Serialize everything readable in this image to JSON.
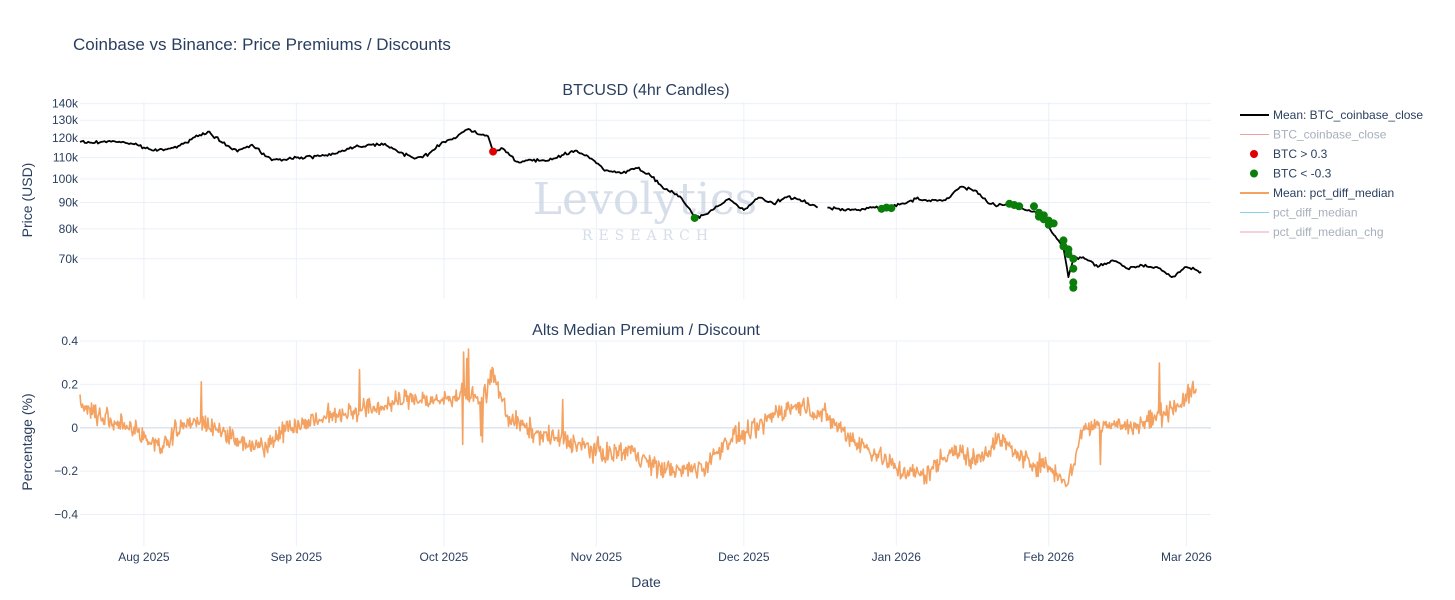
{
  "colors": {
    "btc_mean": "#000000",
    "btc_close": "#e8a0a0",
    "btc_premium": "#e00000",
    "btc_discount": "#0a7d0a",
    "alts_mean": "#f4a261",
    "pct_diff": "#7fd4e8",
    "pct_chg": "#e8a0b8",
    "grid": "#ebf0f8",
    "text": "#2a3f5f",
    "legend_muted": "#a7afbb",
    "watermark": "#c9d3e2"
  },
  "watermark": {
    "main": "Levolytics",
    "sub": "RESEARCH"
  },
  "chart_data": {
    "title": "Coinbase vs Binance: Price Premiums / Discounts",
    "x_axis": {
      "label": "Date",
      "range": [
        "2025-07-19",
        "2026-03-06"
      ],
      "ticks": [
        {
          "date": "2025-08-01",
          "label": "Aug 2025"
        },
        {
          "date": "2025-09-01",
          "label": "Sep 2025"
        },
        {
          "date": "2025-10-01",
          "label": "Oct 2025"
        },
        {
          "date": "2025-11-01",
          "label": "Nov 2025"
        },
        {
          "date": "2025-12-01",
          "label": "Dec 2025"
        },
        {
          "date": "2026-01-01",
          "label": "Jan 2026"
        },
        {
          "date": "2026-02-01",
          "label": "Feb 2026"
        },
        {
          "date": "2026-03-01",
          "label": "Mar 2026"
        }
      ]
    },
    "legend": [
      {
        "name": "Mean: BTC_coinbase_close",
        "symbol": "line",
        "color": "#000000",
        "muted": false
      },
      {
        "name": "BTC_coinbase_close",
        "symbol": "thin-line",
        "color": "#e8a0a0",
        "muted": true
      },
      {
        "name": "BTC > 0.3",
        "symbol": "dot",
        "color": "#e00000",
        "muted": false
      },
      {
        "name": "BTC < -0.3",
        "symbol": "dot",
        "color": "#0a7d0a",
        "muted": false
      },
      {
        "name": "Mean: pct_diff_median",
        "symbol": "line",
        "color": "#f4a261",
        "muted": false
      },
      {
        "name": "pct_diff_median",
        "symbol": "thin-line",
        "color": "#7fd4e8",
        "muted": true
      },
      {
        "name": "pct_diff_median_chg",
        "symbol": "thin-line",
        "color": "#e8a0b8",
        "muted": true
      }
    ],
    "panels": [
      {
        "title": "BTCUSD (4hr Candles)",
        "type": "line",
        "yscale": "log",
        "ylabel": "Price (USD)",
        "ylim": [
          58500,
          141000
        ],
        "yticks": [
          {
            "value": 70000,
            "label": "70k"
          },
          {
            "value": 80000,
            "label": "80k"
          },
          {
            "value": 90000,
            "label": "90k"
          },
          {
            "value": 100000,
            "label": "100k"
          },
          {
            "value": 110000,
            "label": "110k"
          },
          {
            "value": 120000,
            "label": "120k"
          },
          {
            "value": 130000,
            "label": "130k"
          },
          {
            "value": 140000,
            "label": "140k"
          }
        ],
        "series_name": "Mean: BTC_coinbase_close",
        "segments": [
          {
            "x": [
              "2025-07-19",
              "2025-07-22",
              "2025-07-25",
              "2025-07-28",
              "2025-07-31",
              "2025-08-03",
              "2025-08-06",
              "2025-08-09",
              "2025-08-12",
              "2025-08-14",
              "2025-08-17",
              "2025-08-20",
              "2025-08-23",
              "2025-08-26",
              "2025-08-29",
              "2025-09-01",
              "2025-09-04",
              "2025-09-07",
              "2025-09-10",
              "2025-09-13",
              "2025-09-16",
              "2025-09-19",
              "2025-09-22",
              "2025-09-25",
              "2025-09-28",
              "2025-10-01",
              "2025-10-03",
              "2025-10-06",
              "2025-10-08",
              "2025-10-10",
              "2025-10-11",
              "2025-10-13",
              "2025-10-16",
              "2025-10-19",
              "2025-10-22",
              "2025-10-25",
              "2025-10-28",
              "2025-10-31",
              "2025-11-03",
              "2025-11-06",
              "2025-11-09",
              "2025-11-12",
              "2025-11-15",
              "2025-11-18",
              "2025-11-21",
              "2025-11-22",
              "2025-11-25",
              "2025-11-28",
              "2025-12-01",
              "2025-12-04",
              "2025-12-07",
              "2025-12-10",
              "2025-12-13",
              "2025-12-16"
            ],
            "y": [
              118000,
              117500,
              118500,
              117800,
              116000,
              113500,
              114500,
              117000,
              121000,
              123500,
              117500,
              113000,
              116500,
              110500,
              108500,
              110000,
              110500,
              111200,
              113000,
              115500,
              116500,
              117000,
              112500,
              109500,
              112000,
              118000,
              120000,
              125000,
              122000,
              121000,
              113000,
              114500,
              108000,
              108500,
              108500,
              111200,
              113500,
              109500,
              104000,
              102500,
              105000,
              101500,
              95500,
              92500,
              84500,
              84000,
              87500,
              91500,
              87000,
              92000,
              89500,
              92500,
              90500,
              88000
            ]
          },
          {
            "x": [
              "2025-12-18",
              "2025-12-21",
              "2025-12-24",
              "2025-12-27",
              "2025-12-30",
              "2026-01-02",
              "2026-01-05",
              "2026-01-08",
              "2026-01-11",
              "2026-01-14",
              "2026-01-17",
              "2026-01-20",
              "2026-01-23",
              "2026-01-26",
              "2026-01-29",
              "2026-01-31",
              "2026-02-02",
              "2026-02-04",
              "2026-02-05",
              "2026-02-06",
              "2026-02-08",
              "2026-02-11",
              "2026-02-14",
              "2026-02-17",
              "2026-02-20",
              "2026-02-23",
              "2026-02-26",
              "2026-03-01",
              "2026-03-04"
            ],
            "y": [
              88000,
              87500,
              87000,
              88000,
              87800,
              89500,
              91500,
              90500,
              91000,
              96500,
              95000,
              89500,
              89000,
              88000,
              86500,
              84000,
              78000,
              73500,
              64500,
              70000,
              70500,
              67500,
              69500,
              67000,
              68000,
              67500,
              64500,
              67500,
              66000
            ]
          }
        ],
        "markers_premium": {
          "label": "BTC > 0.3",
          "x": [
            "2025-10-11"
          ],
          "y": [
            113000
          ]
        },
        "markers_discount": {
          "label": "BTC < -0.3",
          "x": [
            "2025-11-21",
            "2025-12-29",
            "2025-12-30",
            "2025-12-31",
            "2026-01-24",
            "2026-01-25",
            "2026-01-26",
            "2026-01-29",
            "2026-01-30",
            "2026-01-30",
            "2026-01-31",
            "2026-01-31",
            "2026-02-01",
            "2026-02-01",
            "2026-02-02",
            "2026-02-04",
            "2026-02-04",
            "2026-02-05",
            "2026-02-05",
            "2026-02-06",
            "2026-02-06",
            "2026-02-06",
            "2026-02-06"
          ],
          "y": [
            84000,
            87500,
            88000,
            87800,
            89500,
            89000,
            88500,
            88500,
            86000,
            84500,
            85000,
            83500,
            83000,
            81500,
            82000,
            76000,
            74000,
            73000,
            71500,
            70000,
            67000,
            63000,
            61500
          ]
        }
      },
      {
        "title": "Alts Median Premium / Discount",
        "type": "line",
        "ylabel": "Percentage (%)",
        "ylim": [
          -0.545,
          0.4
        ],
        "yticks": [
          {
            "value": -0.4,
            "label": "−0.4"
          },
          {
            "value": -0.2,
            "label": "−0.2"
          },
          {
            "value": 0,
            "label": "0"
          },
          {
            "value": 0.2,
            "label": "0.2"
          },
          {
            "value": 0.4,
            "label": "0.4"
          }
        ],
        "series_name": "Mean: pct_diff_median",
        "noise_amplitude": 0.05,
        "x": [
          "2025-07-19",
          "2025-07-23",
          "2025-07-27",
          "2025-08-01",
          "2025-08-05",
          "2025-08-10",
          "2025-08-15",
          "2025-08-20",
          "2025-08-25",
          "2025-08-30",
          "2025-09-04",
          "2025-09-09",
          "2025-09-14",
          "2025-09-19",
          "2025-09-24",
          "2025-09-29",
          "2025-10-04",
          "2025-10-09",
          "2025-10-11",
          "2025-10-14",
          "2025-10-19",
          "2025-10-24",
          "2025-10-29",
          "2025-11-03",
          "2025-11-08",
          "2025-11-13",
          "2025-11-18",
          "2025-11-23",
          "2025-11-28",
          "2025-12-03",
          "2025-12-08",
          "2025-12-13",
          "2025-12-18",
          "2025-12-23",
          "2025-12-28",
          "2026-01-02",
          "2026-01-07",
          "2026-01-12",
          "2026-01-17",
          "2026-01-22",
          "2026-01-27",
          "2026-02-01",
          "2026-02-05",
          "2026-02-08",
          "2026-02-13",
          "2026-02-18",
          "2026-02-23",
          "2026-02-28",
          "2026-03-03"
        ],
        "y": [
          0.12,
          0.05,
          0.02,
          -0.04,
          -0.08,
          0.03,
          0.01,
          -0.06,
          -0.09,
          0.0,
          0.03,
          0.06,
          0.08,
          0.1,
          0.14,
          0.12,
          0.15,
          0.13,
          0.25,
          0.05,
          -0.02,
          -0.05,
          -0.08,
          -0.12,
          -0.1,
          -0.18,
          -0.2,
          -0.18,
          -0.05,
          -0.02,
          0.08,
          0.1,
          0.05,
          -0.05,
          -0.12,
          -0.2,
          -0.22,
          -0.1,
          -0.15,
          -0.05,
          -0.15,
          -0.18,
          -0.25,
          0.0,
          0.02,
          0.0,
          0.05,
          0.12,
          0.18
        ]
      }
    ]
  }
}
